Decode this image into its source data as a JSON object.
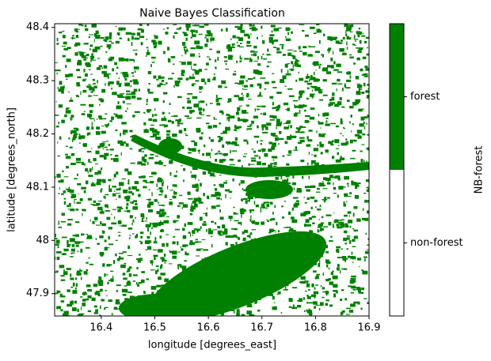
{
  "chart_data": {
    "type": "raster",
    "title": "Naive Bayes Classification",
    "xlabel": "longitude [degrees_east]",
    "ylabel": "latitude [degrees_north]",
    "xlim": [
      16.313,
      16.9
    ],
    "xticks": [
      16.4,
      16.5,
      16.6,
      16.7,
      16.8,
      16.9
    ],
    "ylim": [
      47.858,
      48.407
    ],
    "yticks": [
      47.9,
      48.0,
      48.1,
      48.2,
      48.3,
      48.4
    ],
    "colorbar": {
      "label": "NB-forest",
      "lim": [
        0,
        1
      ],
      "boundaries": [
        0,
        0.5,
        1
      ],
      "colors": [
        "#ffffff",
        "#008000"
      ],
      "ticks": [
        {
          "value": 0.25,
          "label": "non-forest"
        },
        {
          "value": 0.75,
          "label": "forest"
        }
      ]
    }
  }
}
